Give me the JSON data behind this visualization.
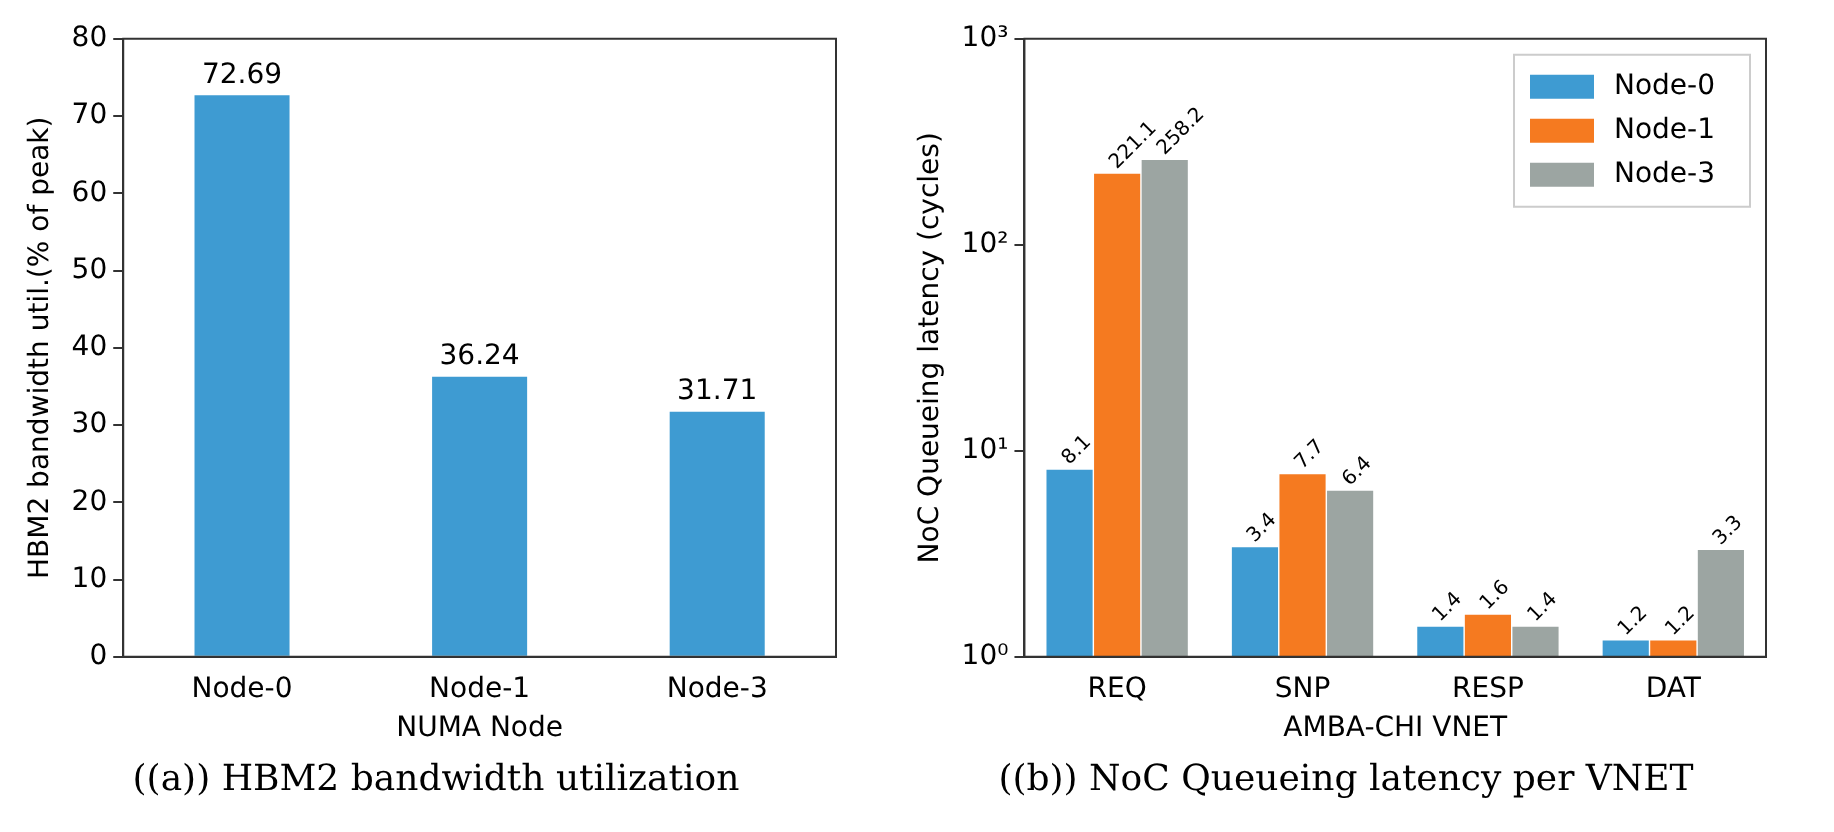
{
  "chart_data": [
    {
      "type": "bar",
      "categories": [
        "Node-0",
        "Node-1",
        "Node-3"
      ],
      "values": [
        72.69,
        36.24,
        31.71
      ],
      "color": "#3e9bd2",
      "xlabel": "NUMA Node",
      "ylabel": "HBM2 bandwidth util.(% of peak)",
      "ylim": [
        0,
        80
      ],
      "yticks": [
        0,
        10,
        20,
        30,
        40,
        50,
        60,
        70,
        80
      ],
      "grid": false,
      "legend": false,
      "data_labels": true,
      "annotations": [
        "((a)) HBM2 bandwidth utilization"
      ]
    },
    {
      "type": "bar",
      "categories": [
        "REQ",
        "SNP",
        "RESP",
        "DAT"
      ],
      "xlabel": "AMBA-CHI VNET",
      "ylabel": "NoC Queueing latency (cycles)",
      "log": "y",
      "ylim": [
        1,
        1000
      ],
      "yticks": [
        {
          "value": 1,
          "label": "10⁰"
        },
        {
          "value": 10,
          "label": "10¹"
        },
        {
          "value": 100,
          "label": "10²"
        },
        {
          "value": 1000,
          "label": "10³"
        }
      ],
      "grid": false,
      "legend": "top right",
      "data_labels": true,
      "series": [
        {
          "name": "Node-0",
          "color": "#3e9bd2",
          "values": [
            8.1,
            3.4,
            1.4,
            1.2
          ]
        },
        {
          "name": "Node-1",
          "color": "#f57a20",
          "values": [
            221.1,
            7.7,
            1.6,
            1.2
          ]
        },
        {
          "name": "Node-3",
          "color": "#9ca5a2",
          "values": [
            258.2,
            6.4,
            1.4,
            3.3
          ]
        }
      ],
      "annotations": [
        "((b)) NoC Queueing latency per VNET"
      ]
    }
  ]
}
